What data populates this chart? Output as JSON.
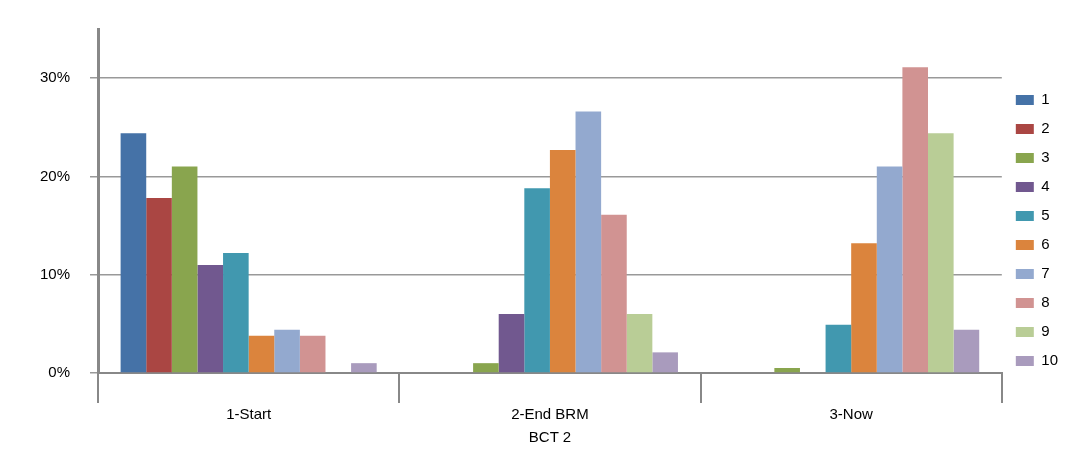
{
  "chart_data": {
    "type": "bar",
    "categories": [
      "1-Start",
      "2-End BRM",
      "3-Now"
    ],
    "xlabel": "BCT 2",
    "ylim": [
      0,
      35
    ],
    "yticks": [
      {
        "value": 0,
        "label": "0%"
      },
      {
        "value": 10,
        "label": "10%"
      },
      {
        "value": 20,
        "label": "20%"
      },
      {
        "value": 30,
        "label": "30%"
      }
    ],
    "grid": "y",
    "legend": "right",
    "series": [
      {
        "name": "1",
        "color": "#4572a7",
        "values": [
          24.4,
          0,
          0
        ]
      },
      {
        "name": "2",
        "color": "#aa4643",
        "values": [
          17.8,
          0,
          0
        ]
      },
      {
        "name": "3",
        "color": "#89a54e",
        "values": [
          21.0,
          1.0,
          0.5
        ]
      },
      {
        "name": "4",
        "color": "#71588f",
        "values": [
          11.0,
          6.0,
          0
        ]
      },
      {
        "name": "5",
        "color": "#4198af",
        "values": [
          12.2,
          18.8,
          4.9
        ]
      },
      {
        "name": "6",
        "color": "#db843d",
        "values": [
          3.8,
          22.7,
          13.2
        ]
      },
      {
        "name": "7",
        "color": "#93a9cf",
        "values": [
          4.4,
          26.6,
          21.0
        ]
      },
      {
        "name": "8",
        "color": "#d19392",
        "values": [
          3.8,
          16.1,
          31.1
        ]
      },
      {
        "name": "9",
        "color": "#b9cd96",
        "values": [
          0,
          6.0,
          24.4
        ]
      },
      {
        "name": "10",
        "color": "#a99bbd",
        "values": [
          1.0,
          2.1,
          4.4
        ]
      }
    ]
  }
}
